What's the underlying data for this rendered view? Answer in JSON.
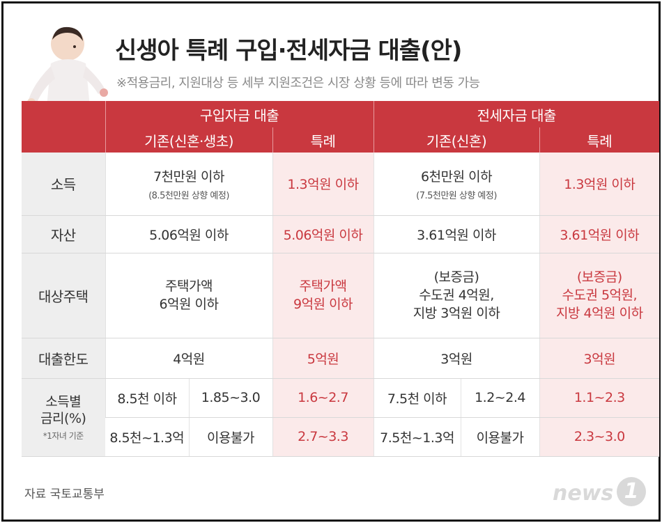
{
  "title": "신생아 특례 구입·전세자금 대출(안)",
  "subtitle": "※적용금리, 지원대상 등 세부 지원조건은 시장 상황 등에 따라 변동 가능",
  "header": {
    "purchase": "구입자금 대출",
    "jeonse": "전세자금 대출",
    "purchase_existing": "기존(신혼·생초)",
    "purchase_special": "특례",
    "jeonse_existing": "기존(신혼)",
    "jeonse_special": "특례"
  },
  "rows": {
    "income": {
      "label": "소득",
      "p_exist": "7천만원 이하",
      "p_exist_note": "(8.5천만원 상향 예정)",
      "p_special": "1.3억원 이하",
      "j_exist": "6천만원 이하",
      "j_exist_note": "(7.5천만원 상향 예정)",
      "j_special": "1.3억원 이하"
    },
    "assets": {
      "label": "자산",
      "p_exist": "5.06억원 이하",
      "p_special": "5.06억원 이하",
      "j_exist": "3.61억원 이하",
      "j_special": "3.61억원 이하"
    },
    "housing": {
      "label": "대상주택",
      "p_exist_1": "주택가액",
      "p_exist_2": "6억원 이하",
      "p_special_1": "주택가액",
      "p_special_2": "9억원 이하",
      "j_exist_1": "(보증금)",
      "j_exist_2": "수도권 4억원,",
      "j_exist_3": "지방 3억원 이하",
      "j_special_1": "(보증금)",
      "j_special_2": "수도권 5억원,",
      "j_special_3": "지방 4억원 이하"
    },
    "limit": {
      "label": "대출한도",
      "p_exist": "4억원",
      "p_special": "5억원",
      "j_exist": "3억원",
      "j_special": "3억원"
    },
    "rate": {
      "label_1": "소득별",
      "label_2": "금리(%)",
      "note": "*1자녀 기준",
      "r1": {
        "p_income": "8.5천 이하",
        "p_rate": "1.85~3.0",
        "p_special": "1.6~2.7",
        "j_income": "7.5천 이하",
        "j_rate": "1.2~2.4",
        "j_special": "1.1~2.3"
      },
      "r2": {
        "p_income": "8.5천~1.3억",
        "p_rate": "이용불가",
        "p_special": "2.7~3.3",
        "j_income": "7.5천~1.3억",
        "j_rate": "이용불가",
        "j_special": "2.3~3.0"
      }
    }
  },
  "source": "자료 국토교통부",
  "logo": {
    "word": "news",
    "mark": "1"
  },
  "colors": {
    "accent": "#c9383f",
    "pink": "#fbeaea",
    "label_bg": "#eeeeee"
  }
}
